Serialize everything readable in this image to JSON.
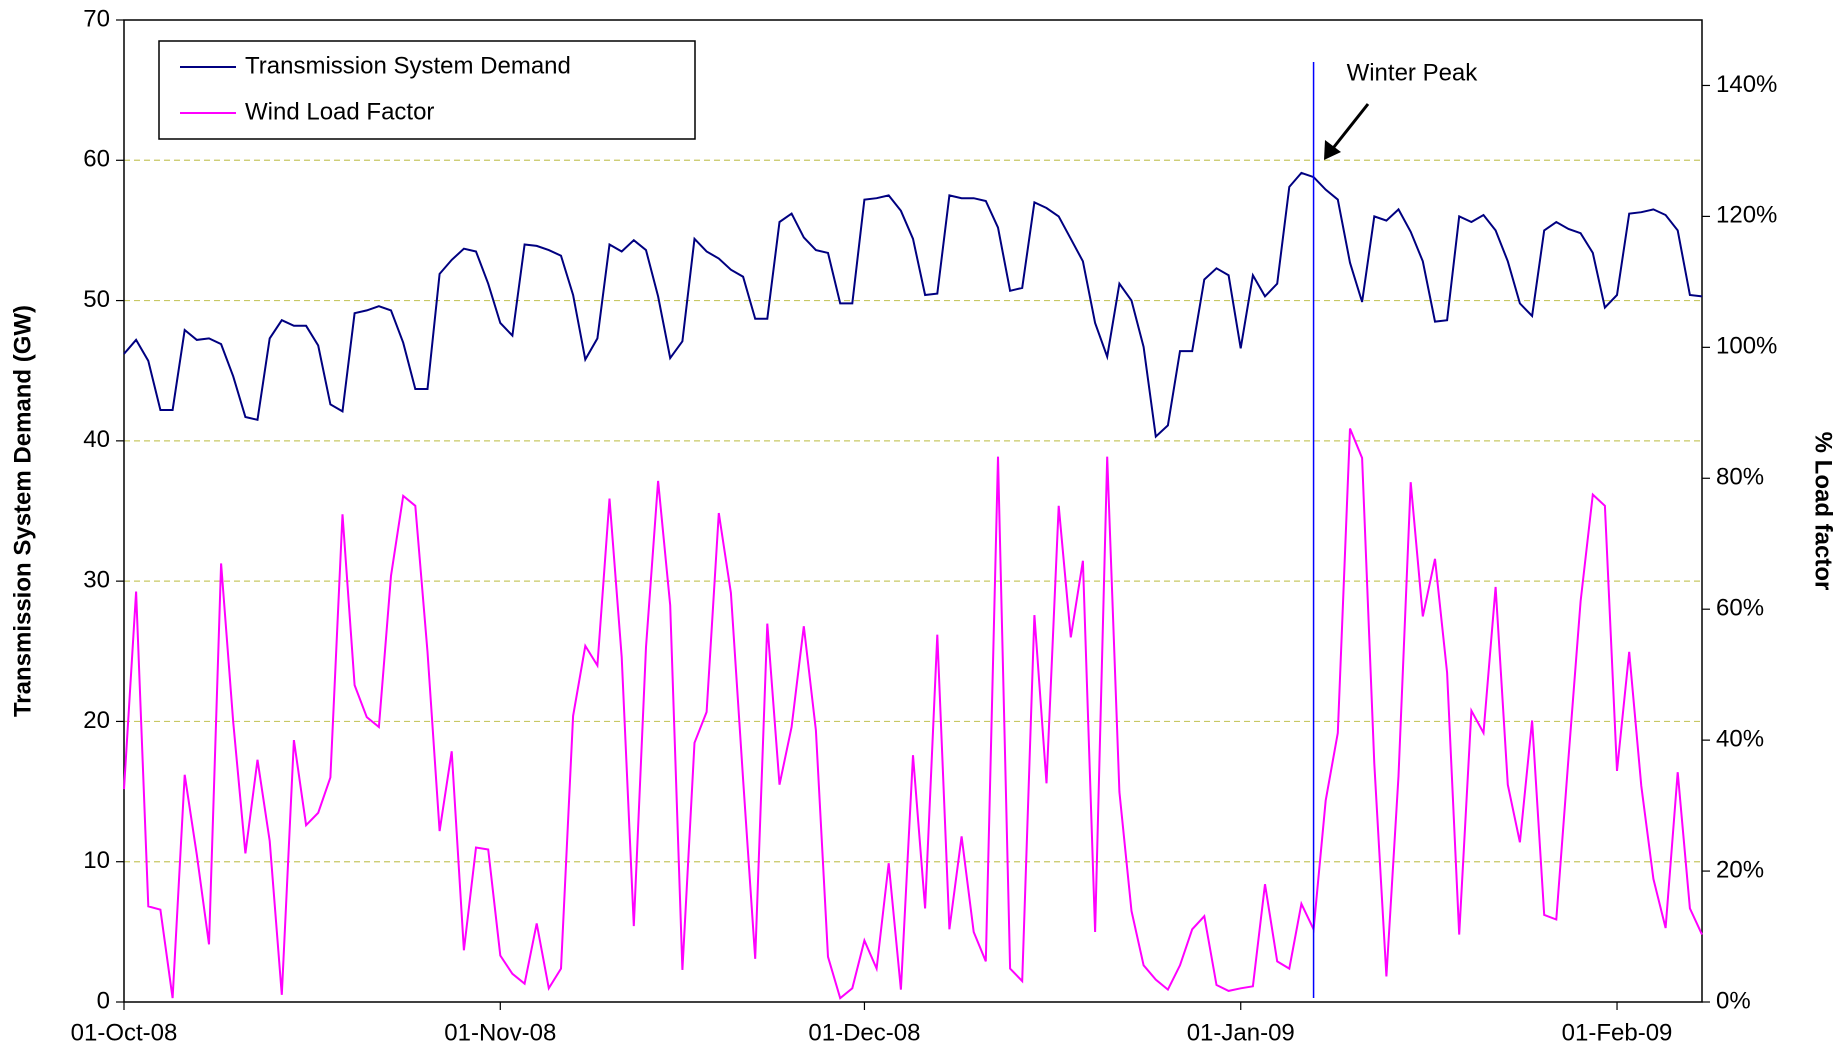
{
  "chart_data": {
    "type": "line",
    "y_label": "Transmission System Demand (GW)",
    "y2_label": "% Load factor",
    "x": [
      "01-Oct-08",
      "02-Oct-08",
      "03-Oct-08",
      "04-Oct-08",
      "05-Oct-08",
      "06-Oct-08",
      "07-Oct-08",
      "08-Oct-08",
      "09-Oct-08",
      "10-Oct-08",
      "11-Oct-08",
      "12-Oct-08",
      "13-Oct-08",
      "14-Oct-08",
      "15-Oct-08",
      "16-Oct-08",
      "17-Oct-08",
      "18-Oct-08",
      "19-Oct-08",
      "20-Oct-08",
      "21-Oct-08",
      "22-Oct-08",
      "23-Oct-08",
      "24-Oct-08",
      "25-Oct-08",
      "26-Oct-08",
      "27-Oct-08",
      "28-Oct-08",
      "29-Oct-08",
      "30-Oct-08",
      "31-Oct-08",
      "01-Nov-08",
      "02-Nov-08",
      "03-Nov-08",
      "04-Nov-08",
      "05-Nov-08",
      "06-Nov-08",
      "07-Nov-08",
      "08-Nov-08",
      "09-Nov-08",
      "10-Nov-08",
      "11-Nov-08",
      "12-Nov-08",
      "13-Nov-08",
      "14-Nov-08",
      "15-Nov-08",
      "16-Nov-08",
      "17-Nov-08",
      "18-Nov-08",
      "19-Nov-08",
      "20-Nov-08",
      "21-Nov-08",
      "22-Nov-08",
      "23-Nov-08",
      "24-Nov-08",
      "25-Nov-08",
      "26-Nov-08",
      "27-Nov-08",
      "28-Nov-08",
      "29-Nov-08",
      "30-Nov-08",
      "01-Dec-08",
      "02-Dec-08",
      "03-Dec-08",
      "04-Dec-08",
      "05-Dec-08",
      "06-Dec-08",
      "07-Dec-08",
      "08-Dec-08",
      "09-Dec-08",
      "10-Dec-08",
      "11-Dec-08",
      "12-Dec-08",
      "13-Dec-08",
      "14-Dec-08",
      "15-Dec-08",
      "16-Dec-08",
      "17-Dec-08",
      "18-Dec-08",
      "19-Dec-08",
      "20-Dec-08",
      "21-Dec-08",
      "22-Dec-08",
      "23-Dec-08",
      "24-Dec-08",
      "25-Dec-08",
      "26-Dec-08",
      "27-Dec-08",
      "28-Dec-08",
      "29-Dec-08",
      "30-Dec-08",
      "31-Dec-08",
      "01-Jan-09",
      "02-Jan-09",
      "03-Jan-09",
      "04-Jan-09",
      "05-Jan-09",
      "06-Jan-09",
      "07-Jan-09",
      "08-Jan-09",
      "09-Jan-09",
      "10-Jan-09",
      "11-Jan-09",
      "12-Jan-09",
      "13-Jan-09",
      "14-Jan-09",
      "15-Jan-09",
      "16-Jan-09",
      "17-Jan-09",
      "18-Jan-09",
      "19-Jan-09",
      "20-Jan-09",
      "21-Jan-09",
      "22-Jan-09",
      "23-Jan-09",
      "24-Jan-09",
      "25-Jan-09",
      "26-Jan-09",
      "27-Jan-09",
      "28-Jan-09",
      "29-Jan-09",
      "30-Jan-09",
      "31-Jan-09",
      "01-Feb-09",
      "02-Feb-09",
      "03-Feb-09",
      "04-Feb-09",
      "05-Feb-09",
      "06-Feb-09",
      "07-Feb-09",
      "08-Feb-09"
    ],
    "series": [
      {
        "name": "Transmission System Demand",
        "color": "#000080",
        "axis": "y",
        "values": [
          46.2,
          47.2,
          45.7,
          42.2,
          42.2,
          47.9,
          47.2,
          47.3,
          46.9,
          44.6,
          41.7,
          41.5,
          47.3,
          48.6,
          48.2,
          48.2,
          46.8,
          42.6,
          42.1,
          49.1,
          49.3,
          49.6,
          49.3,
          47.0,
          43.7,
          43.7,
          51.9,
          52.9,
          53.7,
          53.5,
          51.2,
          48.4,
          47.5,
          54.0,
          53.9,
          53.6,
          53.2,
          50.4,
          45.8,
          47.3,
          54.0,
          53.5,
          54.3,
          53.6,
          50.3,
          45.9,
          47.1,
          54.4,
          53.5,
          53.0,
          52.2,
          51.7,
          48.7,
          48.7,
          55.6,
          56.2,
          54.5,
          53.6,
          53.4,
          49.8,
          49.8,
          57.2,
          57.3,
          57.5,
          56.4,
          54.4,
          50.4,
          50.5,
          57.5,
          57.3,
          57.3,
          57.1,
          55.2,
          50.7,
          50.9,
          57.0,
          56.6,
          56.0,
          54.4,
          52.8,
          48.4,
          46.0,
          51.2,
          50.0,
          46.7,
          40.3,
          41.1,
          46.4,
          46.4,
          51.5,
          52.3,
          51.8,
          46.6,
          51.8,
          50.3,
          51.2,
          58.1,
          59.1,
          58.8,
          57.9,
          57.2,
          52.7,
          49.9,
          56.0,
          55.7,
          56.5,
          54.9,
          52.8,
          48.5,
          48.6,
          56.0,
          55.6,
          56.1,
          55.0,
          52.8,
          49.8,
          48.9,
          55.0,
          55.6,
          55.1,
          54.8,
          53.4,
          49.5,
          50.4,
          56.2,
          56.3,
          56.5,
          56.1,
          55.0,
          50.4,
          50.3
        ]
      },
      {
        "name": "Wind Load Factor",
        "color": "#ff00ff",
        "axis": "y2",
        "values": [
          32.5,
          62.7,
          14.6,
          14.1,
          0.6,
          34.7,
          22.5,
          8.8,
          67.0,
          42.8,
          22.7,
          37.0,
          24.6,
          1.1,
          40.0,
          27.0,
          28.9,
          34.3,
          74.5,
          48.4,
          43.5,
          42.0,
          65.1,
          77.3,
          75.8,
          53.5,
          26.1,
          38.3,
          7.9,
          23.6,
          23.3,
          7.1,
          4.3,
          2.8,
          12.0,
          2.1,
          5.1,
          43.7,
          54.4,
          51.4,
          76.9,
          52.7,
          11.6,
          54.2,
          79.6,
          60.6,
          4.9,
          39.6,
          44.3,
          74.7,
          62.5,
          34.0,
          6.6,
          57.8,
          33.2,
          42.0,
          57.4,
          41.5,
          6.9,
          0.6,
          2.1,
          9.4,
          5.1,
          21.2,
          1.9,
          37.7,
          14.3,
          56.1,
          11.1,
          25.3,
          10.7,
          6.2,
          83.3,
          5.1,
          3.2,
          59.1,
          33.4,
          75.8,
          55.7,
          67.4,
          10.7,
          83.3,
          32.1,
          13.9,
          5.6,
          3.4,
          1.9,
          5.6,
          11.1,
          13.1,
          2.6,
          1.7,
          2.1,
          2.4,
          18.0,
          6.2,
          5.1,
          15.0,
          11.1,
          30.8,
          41.1,
          87.6,
          83.1,
          36.4,
          3.9,
          34.5,
          79.4,
          58.9,
          67.7,
          50.3,
          10.3,
          44.5,
          41.1,
          63.4,
          33.2,
          24.4,
          43.0,
          13.3,
          12.6,
          37.3,
          61.2,
          77.5,
          75.8,
          35.3,
          53.5,
          33.0,
          18.8,
          11.3,
          35.1,
          14.3,
          10.3
        ]
      }
    ],
    "xlim": [
      "01-Oct-08",
      "08-Feb-09"
    ],
    "xticks": [
      "01-Oct-08",
      "01-Nov-08",
      "01-Dec-08",
      "01-Jan-09",
      "01-Feb-09"
    ],
    "ylim": [
      0,
      70
    ],
    "yticks": [
      0,
      10,
      20,
      30,
      40,
      50,
      60,
      70
    ],
    "y2lim": [
      0,
      150
    ],
    "y2ticks": [
      {
        "value": 0,
        "label": "0%"
      },
      {
        "value": 20,
        "label": "20%"
      },
      {
        "value": 40,
        "label": "40%"
      },
      {
        "value": 60,
        "label": "60%"
      },
      {
        "value": 80,
        "label": "80%"
      },
      {
        "value": 100,
        "label": "100%"
      },
      {
        "value": 120,
        "label": "120%"
      },
      {
        "value": 140,
        "label": "140%"
      }
    ],
    "grid": true,
    "legend": "upper left",
    "annotation": {
      "text": "Winter Peak",
      "x": "07-Jan-09",
      "color": "#0000ff"
    }
  }
}
